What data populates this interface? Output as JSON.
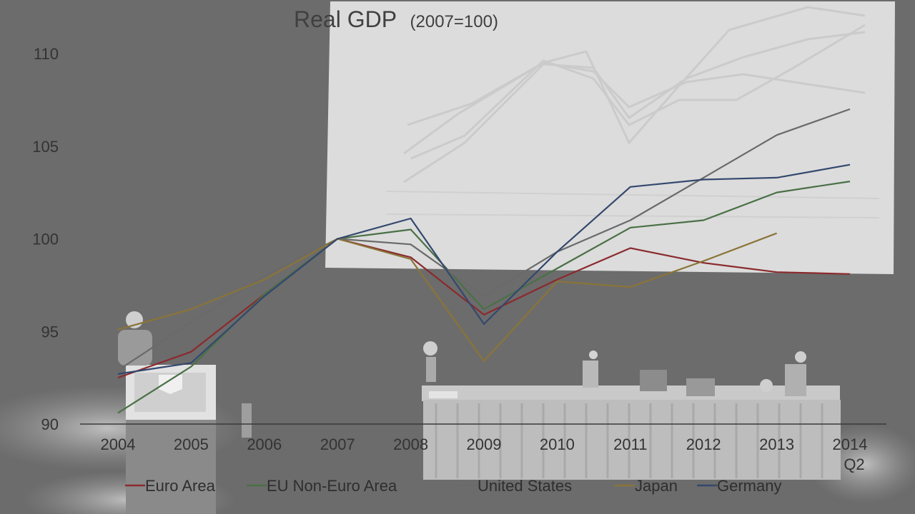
{
  "chart_data": {
    "type": "line",
    "title": "Real GDP",
    "subtitle": "(2007=100)",
    "xlabel": "",
    "ylabel": "",
    "categories": [
      "2004",
      "2005",
      "2006",
      "2007",
      "2008",
      "2009",
      "2010",
      "2011",
      "2012",
      "2013",
      "2014"
    ],
    "category_sublabels": [
      "",
      "",
      "",
      "",
      "",
      "",
      "",
      "",
      "",
      "",
      "Q2"
    ],
    "ylim": [
      90,
      110
    ],
    "yticks": [
      90,
      95,
      100,
      105,
      110
    ],
    "grid": false,
    "legend_position": "bottom",
    "series": [
      {
        "name": "Euro Area",
        "color": "#8b2a2e",
        "values": [
          92.5,
          93.9,
          97.0,
          100.0,
          99.0,
          95.9,
          97.8,
          99.5,
          98.7,
          98.2,
          98.1
        ]
      },
      {
        "name": "EU Non-Euro Area",
        "color": "#4a7046",
        "values": [
          90.6,
          93.1,
          97.0,
          100.0,
          100.5,
          96.2,
          98.4,
          100.6,
          101.0,
          102.5,
          103.1
        ]
      },
      {
        "name": "United States",
        "color": "#6a6a6a",
        "values": [
          92.9,
          95.5,
          98.0,
          100.0,
          99.7,
          96.9,
          99.3,
          101.0,
          103.3,
          105.6,
          107.0
        ]
      },
      {
        "name": "Japan",
        "color": "#8a7438",
        "values": [
          95.1,
          96.2,
          97.8,
          100.0,
          98.9,
          93.4,
          97.7,
          97.4,
          98.8,
          100.3,
          null
        ]
      },
      {
        "name": "Germany",
        "color": "#33486e",
        "values": [
          92.7,
          93.3,
          96.9,
          100.0,
          101.1,
          95.4,
          99.3,
          102.8,
          103.2,
          103.3,
          104.0
        ]
      }
    ]
  }
}
